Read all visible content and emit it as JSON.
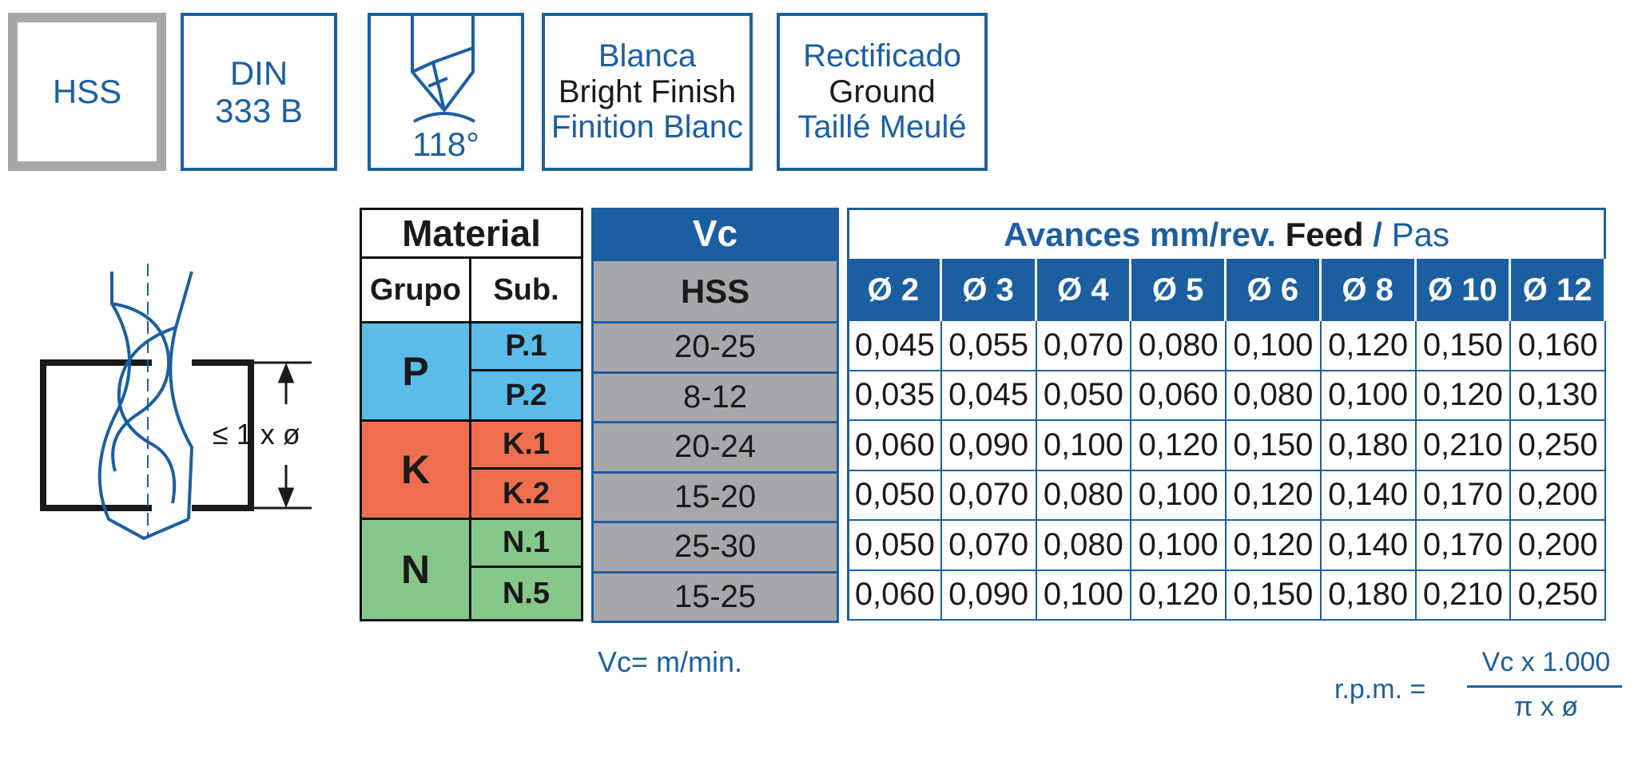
{
  "badges": {
    "material": "HSS",
    "din_line1": "DIN",
    "din_line2": "333 B",
    "angle": "118°",
    "finish": [
      "Blanca",
      "Bright Finish",
      "Finition Blanc"
    ],
    "ground": [
      "Rectificado",
      "Ground",
      "Taillé Meulé"
    ]
  },
  "diagram": {
    "depth_label": "≤ 1 x ø"
  },
  "material_table": {
    "title": "Material",
    "col_grupo": "Grupo",
    "col_sub": "Sub.",
    "groups": [
      {
        "name": "P",
        "color": "#5bbcea",
        "subs": [
          "P.1",
          "P.2"
        ]
      },
      {
        "name": "K",
        "color": "#ee6f4f",
        "subs": [
          "K.1",
          "K.2"
        ]
      },
      {
        "name": "N",
        "color": "#86c88a",
        "subs": [
          "N.1",
          "N.5"
        ]
      }
    ]
  },
  "vc_table": {
    "title": "Vc",
    "subtitle": "HSS",
    "values": [
      "20-25",
      "8-12",
      "20-24",
      "15-20",
      "25-30",
      "15-25"
    ],
    "unit_note": "Vc= m/min."
  },
  "feed_table": {
    "title_bold_es": "Avances mm/rev.",
    "title_en": "Feed",
    "title_sep": "/",
    "title_fr": "Pas",
    "diameters": [
      "Ø 2",
      "Ø 3",
      "Ø 4",
      "Ø 5",
      "Ø 6",
      "Ø 8",
      "Ø 10",
      "Ø 12"
    ],
    "rows": [
      [
        "0,045",
        "0,055",
        "0,070",
        "0,080",
        "0,100",
        "0,120",
        "0,150",
        "0,160"
      ],
      [
        "0,035",
        "0,045",
        "0,050",
        "0,060",
        "0,080",
        "0,100",
        "0,120",
        "0,130"
      ],
      [
        "0,060",
        "0,090",
        "0,100",
        "0,120",
        "0,150",
        "0,180",
        "0,210",
        "0,250"
      ],
      [
        "0,050",
        "0,070",
        "0,080",
        "0,100",
        "0,120",
        "0,140",
        "0,170",
        "0,200"
      ],
      [
        "0,050",
        "0,070",
        "0,080",
        "0,100",
        "0,120",
        "0,140",
        "0,170",
        "0,200"
      ],
      [
        "0,060",
        "0,090",
        "0,100",
        "0,120",
        "0,150",
        "0,180",
        "0,210",
        "0,250"
      ]
    ]
  },
  "formula": {
    "lhs": "r.p.m. =",
    "numerator": "Vc x 1.000",
    "denominator": "π x ø"
  },
  "colors": {
    "brand_blue": "#1c5fa0",
    "grey": "#a7a7ab",
    "p_group": "#5bbcea",
    "k_group": "#ee6f4f",
    "n_group": "#86c88a"
  }
}
